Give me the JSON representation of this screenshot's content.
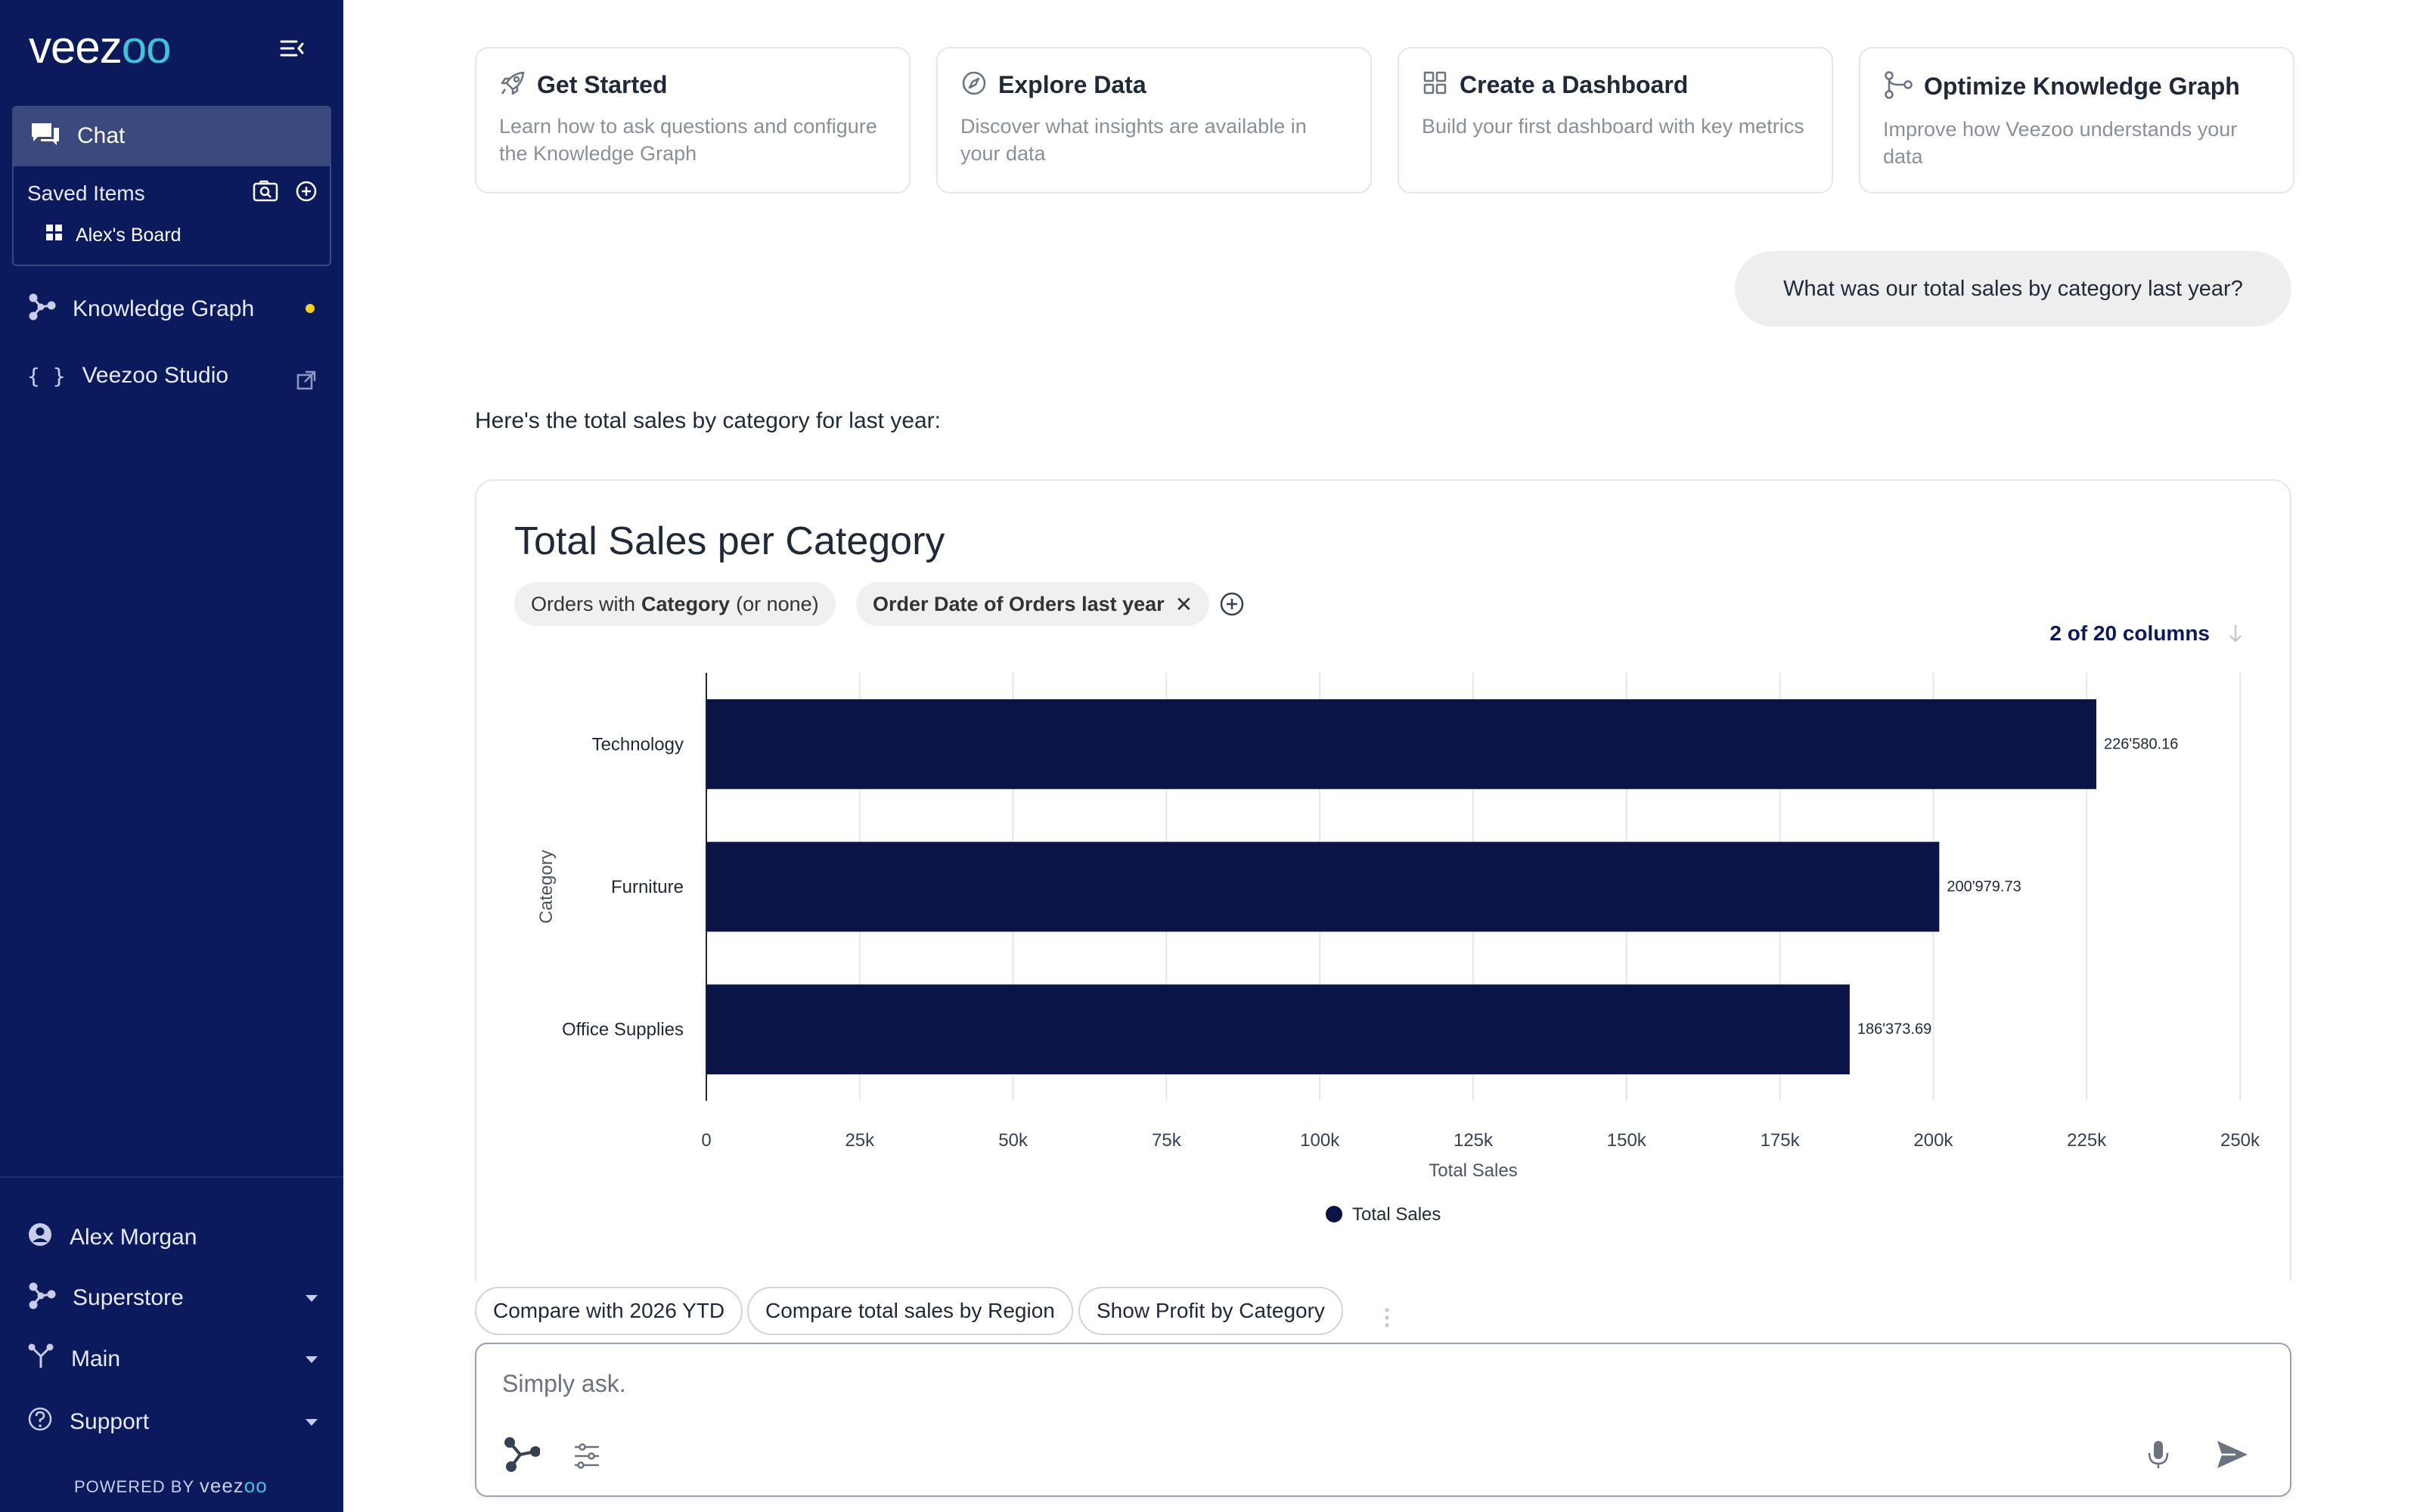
{
  "sidebar": {
    "logo": {
      "main": "veez",
      "accent": "oo"
    },
    "chat_label": "Chat",
    "saved_items_label": "Saved Items",
    "board_label": "Alex's Board",
    "knowledge_graph_label": "Knowledge Graph",
    "studio_label": "Veezoo Studio",
    "user_label": "Alex Morgan",
    "database_label": "Superstore",
    "branch_label": "Main",
    "support_label": "Support",
    "powered_by": "POWERED BY",
    "powered_brand": {
      "main": "veez",
      "accent": "oo"
    }
  },
  "cards": [
    {
      "icon": "rocket-icon",
      "title": "Get Started",
      "desc": "Learn how to ask questions and configure the Knowledge Graph"
    },
    {
      "icon": "compass-icon",
      "title": "Explore Data",
      "desc": "Discover what insights are available in your data"
    },
    {
      "icon": "dashboard-icon",
      "title": "Create a Dashboard",
      "desc": "Build your first dashboard with key metrics"
    },
    {
      "icon": "graph-icon",
      "title": "Optimize Knowledge Graph",
      "desc": "Improve how Veezoo understands your data"
    }
  ],
  "conversation": {
    "user_message": "What was our total sales by category last year?",
    "answer_text": "Here's the total sales by category for last year:"
  },
  "result": {
    "title": "Total Sales per Category",
    "filter_1": {
      "prefix": "Orders with",
      "bold": "Category",
      "suffix": "(or none)"
    },
    "filter_2": "Order Date of Orders last year",
    "columns_link": "2 of 20 columns"
  },
  "chart_data": {
    "type": "bar",
    "orientation": "horizontal",
    "categories": [
      "Technology",
      "Furniture",
      "Office Supplies"
    ],
    "series": [
      {
        "name": "Total Sales",
        "values": [
          226580.16,
          200979.73,
          186373.69
        ]
      }
    ],
    "value_labels": [
      "226'580.16",
      "200'979.73",
      "186'373.69"
    ],
    "xlabel": "Total Sales",
    "ylabel": "Category",
    "xlim": [
      0,
      250000
    ],
    "x_ticks": [
      0,
      25000,
      50000,
      75000,
      100000,
      125000,
      150000,
      175000,
      200000,
      225000,
      250000
    ],
    "x_tick_labels": [
      "0",
      "25k",
      "50k",
      "75k",
      "100k",
      "125k",
      "150k",
      "175k",
      "200k",
      "225k",
      "250k"
    ],
    "grid": true,
    "legend_position": "bottom",
    "bar_color": "#0a1446"
  },
  "suggestions": [
    "Compare with 2026 YTD",
    "Compare total sales by Region",
    "Show Profit by Category"
  ],
  "input": {
    "placeholder": "Simply ask."
  },
  "colors": {
    "sidebar_bg": "#0b1a5c",
    "sidebar_active": "#3a4a7e",
    "accent": "#3cc4d8",
    "notification": "#f5d315"
  }
}
